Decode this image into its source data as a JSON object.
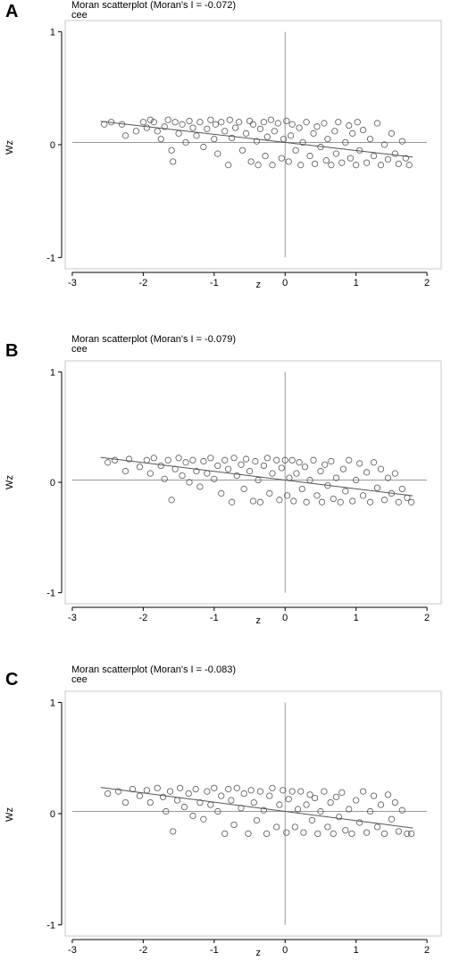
{
  "figure": {
    "panels": [
      {
        "letter": "A",
        "title": "Moran scatterplot (Moran's I = -0.072)",
        "subtitle": "cee"
      },
      {
        "letter": "B",
        "title": "Moran scatterplot (Moran's I = -0.079)",
        "subtitle": "cee"
      },
      {
        "letter": "C",
        "title": "Moran scatterplot (Moran's I = -0.083)",
        "subtitle": "cee"
      }
    ]
  },
  "chart_data": [
    {
      "type": "scatter",
      "title": "Moran scatterplot (Moran's I = -0.072)",
      "subtitle": "cee",
      "xlabel": "z",
      "ylabel": "Wz",
      "xlim": [
        -3.1,
        2.2
      ],
      "ylim": [
        -1.1,
        1.1
      ],
      "xticks": [
        -3,
        -2,
        -1,
        0,
        1,
        2
      ],
      "yticks": [
        -1,
        0,
        1
      ],
      "reference_lines": {
        "x": 0,
        "y": 0.02
      },
      "fit_line": {
        "intercept": 0.02,
        "slope": -0.072
      },
      "marker": "hollow-circle",
      "points": [
        [
          -2.55,
          0.18
        ],
        [
          -2.45,
          0.2
        ],
        [
          -2.3,
          0.18
        ],
        [
          -2.25,
          0.08
        ],
        [
          -2.1,
          0.12
        ],
        [
          -2.0,
          0.2
        ],
        [
          -1.95,
          0.15
        ],
        [
          -1.9,
          0.22
        ],
        [
          -1.85,
          0.2
        ],
        [
          -1.8,
          0.12
        ],
        [
          -1.75,
          0.05
        ],
        [
          -1.7,
          0.16
        ],
        [
          -1.65,
          0.22
        ],
        [
          -1.6,
          -0.05
        ],
        [
          -1.58,
          -0.15
        ],
        [
          -1.55,
          0.2
        ],
        [
          -1.5,
          0.1
        ],
        [
          -1.45,
          0.18
        ],
        [
          -1.4,
          0.02
        ],
        [
          -1.35,
          0.21
        ],
        [
          -1.3,
          0.15
        ],
        [
          -1.25,
          0.08
        ],
        [
          -1.2,
          0.2
        ],
        [
          -1.15,
          -0.02
        ],
        [
          -1.1,
          0.14
        ],
        [
          -1.05,
          0.22
        ],
        [
          -1.0,
          0.05
        ],
        [
          -0.98,
          0.18
        ],
        [
          -0.95,
          -0.08
        ],
        [
          -0.9,
          0.2
        ],
        [
          -0.85,
          0.12
        ],
        [
          -0.8,
          -0.18
        ],
        [
          -0.78,
          0.22
        ],
        [
          -0.75,
          0.06
        ],
        [
          -0.7,
          0.15
        ],
        [
          -0.65,
          0.2
        ],
        [
          -0.6,
          -0.05
        ],
        [
          -0.55,
          0.1
        ],
        [
          -0.5,
          0.21
        ],
        [
          -0.48,
          -0.15
        ],
        [
          -0.45,
          0.18
        ],
        [
          -0.4,
          0.03
        ],
        [
          -0.38,
          -0.18
        ],
        [
          -0.35,
          0.14
        ],
        [
          -0.3,
          0.2
        ],
        [
          -0.28,
          -0.1
        ],
        [
          -0.25,
          0.07
        ],
        [
          -0.2,
          0.22
        ],
        [
          -0.18,
          -0.18
        ],
        [
          -0.15,
          0.12
        ],
        [
          -0.1,
          0.19
        ],
        [
          -0.05,
          -0.12
        ],
        [
          -0.02,
          0.05
        ],
        [
          0.02,
          0.21
        ],
        [
          0.05,
          -0.15
        ],
        [
          0.08,
          0.08
        ],
        [
          0.1,
          0.18
        ],
        [
          0.15,
          -0.05
        ],
        [
          0.2,
          0.15
        ],
        [
          0.22,
          -0.18
        ],
        [
          0.25,
          0.02
        ],
        [
          0.3,
          0.2
        ],
        [
          0.35,
          -0.1
        ],
        [
          0.4,
          0.1
        ],
        [
          0.42,
          -0.17
        ],
        [
          0.45,
          0.16
        ],
        [
          0.5,
          -0.02
        ],
        [
          0.55,
          0.19
        ],
        [
          0.58,
          -0.14
        ],
        [
          0.6,
          0.05
        ],
        [
          0.65,
          -0.18
        ],
        [
          0.7,
          0.12
        ],
        [
          0.72,
          -0.08
        ],
        [
          0.75,
          0.2
        ],
        [
          0.8,
          -0.16
        ],
        [
          0.85,
          0.02
        ],
        [
          0.9,
          0.17
        ],
        [
          0.92,
          -0.12
        ],
        [
          0.95,
          0.1
        ],
        [
          1.0,
          -0.18
        ],
        [
          1.02,
          0.2
        ],
        [
          1.05,
          -0.05
        ],
        [
          1.1,
          0.13
        ],
        [
          1.15,
          -0.16
        ],
        [
          1.2,
          0.05
        ],
        [
          1.25,
          -0.1
        ],
        [
          1.3,
          0.19
        ],
        [
          1.35,
          -0.18
        ],
        [
          1.4,
          0.0
        ],
        [
          1.45,
          -0.13
        ],
        [
          1.5,
          0.1
        ],
        [
          1.55,
          -0.08
        ],
        [
          1.6,
          -0.17
        ],
        [
          1.65,
          0.03
        ],
        [
          1.7,
          -0.12
        ],
        [
          1.75,
          -0.18
        ]
      ]
    },
    {
      "type": "scatter",
      "title": "Moran scatterplot (Moran's I = -0.079)",
      "subtitle": "cee",
      "xlabel": "z",
      "ylabel": "Wz",
      "xlim": [
        -3.1,
        2.2
      ],
      "ylim": [
        -1.1,
        1.1
      ],
      "xticks": [
        -3,
        -2,
        -1,
        0,
        1,
        2
      ],
      "yticks": [
        -1,
        0,
        1
      ],
      "reference_lines": {
        "x": 0,
        "y": 0.02
      },
      "fit_line": {
        "intercept": 0.02,
        "slope": -0.079
      },
      "marker": "hollow-circle",
      "points": [
        [
          -2.5,
          0.18
        ],
        [
          -2.4,
          0.2
        ],
        [
          -2.25,
          0.1
        ],
        [
          -2.2,
          0.21
        ],
        [
          -2.05,
          0.14
        ],
        [
          -1.95,
          0.2
        ],
        [
          -1.9,
          0.08
        ],
        [
          -1.85,
          0.22
        ],
        [
          -1.75,
          0.15
        ],
        [
          -1.7,
          0.03
        ],
        [
          -1.65,
          0.2
        ],
        [
          -1.6,
          -0.16
        ],
        [
          -1.55,
          0.12
        ],
        [
          -1.5,
          0.22
        ],
        [
          -1.45,
          0.06
        ],
        [
          -1.4,
          0.18
        ],
        [
          -1.35,
          0.0
        ],
        [
          -1.3,
          0.2
        ],
        [
          -1.25,
          0.1
        ],
        [
          -1.2,
          -0.04
        ],
        [
          -1.15,
          0.19
        ],
        [
          -1.1,
          0.08
        ],
        [
          -1.05,
          0.22
        ],
        [
          -1.0,
          0.03
        ],
        [
          -0.95,
          0.15
        ],
        [
          -0.9,
          -0.1
        ],
        [
          -0.85,
          0.2
        ],
        [
          -0.8,
          0.12
        ],
        [
          -0.75,
          -0.18
        ],
        [
          -0.72,
          0.22
        ],
        [
          -0.68,
          0.06
        ],
        [
          -0.62,
          0.16
        ],
        [
          -0.58,
          -0.06
        ],
        [
          -0.55,
          0.21
        ],
        [
          -0.5,
          0.1
        ],
        [
          -0.45,
          -0.17
        ],
        [
          -0.42,
          0.19
        ],
        [
          -0.38,
          0.02
        ],
        [
          -0.35,
          -0.18
        ],
        [
          -0.3,
          0.15
        ],
        [
          -0.25,
          0.22
        ],
        [
          -0.22,
          -0.1
        ],
        [
          -0.18,
          0.08
        ],
        [
          -0.12,
          0.2
        ],
        [
          -0.08,
          -0.16
        ],
        [
          -0.05,
          0.13
        ],
        [
          0.0,
          0.2
        ],
        [
          0.03,
          -0.12
        ],
        [
          0.06,
          0.04
        ],
        [
          0.1,
          0.2
        ],
        [
          0.12,
          -0.17
        ],
        [
          0.16,
          0.08
        ],
        [
          0.2,
          0.18
        ],
        [
          0.24,
          -0.06
        ],
        [
          0.28,
          0.14
        ],
        [
          0.3,
          -0.18
        ],
        [
          0.35,
          0.02
        ],
        [
          0.4,
          0.2
        ],
        [
          0.45,
          -0.12
        ],
        [
          0.5,
          0.1
        ],
        [
          0.52,
          -0.18
        ],
        [
          0.56,
          0.16
        ],
        [
          0.6,
          -0.03
        ],
        [
          0.65,
          0.19
        ],
        [
          0.68,
          -0.15
        ],
        [
          0.72,
          0.04
        ],
        [
          0.78,
          -0.18
        ],
        [
          0.82,
          0.12
        ],
        [
          0.85,
          -0.08
        ],
        [
          0.9,
          0.2
        ],
        [
          0.95,
          -0.17
        ],
        [
          1.0,
          0.02
        ],
        [
          1.05,
          0.17
        ],
        [
          1.1,
          -0.12
        ],
        [
          1.15,
          0.09
        ],
        [
          1.2,
          -0.18
        ],
        [
          1.25,
          0.18
        ],
        [
          1.3,
          -0.05
        ],
        [
          1.35,
          0.12
        ],
        [
          1.4,
          -0.16
        ],
        [
          1.45,
          0.04
        ],
        [
          1.5,
          -0.1
        ],
        [
          1.55,
          0.08
        ],
        [
          1.6,
          -0.18
        ],
        [
          1.65,
          -0.06
        ],
        [
          1.72,
          -0.14
        ],
        [
          1.78,
          -0.18
        ]
      ]
    },
    {
      "type": "scatter",
      "title": "Moran scatterplot (Moran's I = -0.083)",
      "subtitle": "cee",
      "xlabel": "z",
      "ylabel": "Wz",
      "xlim": [
        -3.1,
        2.2
      ],
      "ylim": [
        -1.1,
        1.1
      ],
      "xticks": [
        -3,
        -2,
        -1,
        0,
        1,
        2
      ],
      "yticks": [
        -1,
        0,
        1
      ],
      "reference_lines": {
        "x": 0,
        "y": 0.02
      },
      "fit_line": {
        "intercept": 0.02,
        "slope": -0.083
      },
      "marker": "hollow-circle",
      "points": [
        [
          -2.5,
          0.18
        ],
        [
          -2.35,
          0.2
        ],
        [
          -2.25,
          0.1
        ],
        [
          -2.15,
          0.22
        ],
        [
          -2.05,
          0.16
        ],
        [
          -1.95,
          0.21
        ],
        [
          -1.9,
          0.1
        ],
        [
          -1.8,
          0.23
        ],
        [
          -1.72,
          0.15
        ],
        [
          -1.68,
          0.02
        ],
        [
          -1.62,
          0.2
        ],
        [
          -1.58,
          -0.16
        ],
        [
          -1.52,
          0.12
        ],
        [
          -1.48,
          0.23
        ],
        [
          -1.42,
          0.06
        ],
        [
          -1.36,
          0.18
        ],
        [
          -1.3,
          -0.02
        ],
        [
          -1.26,
          0.22
        ],
        [
          -1.2,
          0.1
        ],
        [
          -1.15,
          -0.05
        ],
        [
          -1.1,
          0.2
        ],
        [
          -1.05,
          0.08
        ],
        [
          -1.0,
          0.23
        ],
        [
          -0.95,
          0.02
        ],
        [
          -0.9,
          0.16
        ],
        [
          -0.85,
          -0.18
        ],
        [
          -0.8,
          0.22
        ],
        [
          -0.76,
          0.12
        ],
        [
          -0.72,
          -0.1
        ],
        [
          -0.68,
          0.23
        ],
        [
          -0.62,
          0.05
        ],
        [
          -0.58,
          0.18
        ],
        [
          -0.52,
          -0.18
        ],
        [
          -0.48,
          0.21
        ],
        [
          -0.44,
          0.1
        ],
        [
          -0.4,
          -0.06
        ],
        [
          -0.35,
          0.2
        ],
        [
          -0.3,
          0.03
        ],
        [
          -0.26,
          -0.18
        ],
        [
          -0.22,
          0.16
        ],
        [
          -0.18,
          0.23
        ],
        [
          -0.12,
          -0.12
        ],
        [
          -0.08,
          0.08
        ],
        [
          -0.03,
          0.21
        ],
        [
          0.02,
          -0.17
        ],
        [
          0.05,
          0.13
        ],
        [
          0.1,
          0.2
        ],
        [
          0.14,
          -0.12
        ],
        [
          0.18,
          0.04
        ],
        [
          0.22,
          0.2
        ],
        [
          0.26,
          -0.17
        ],
        [
          0.3,
          0.08
        ],
        [
          0.35,
          0.17
        ],
        [
          0.38,
          -0.06
        ],
        [
          0.42,
          0.14
        ],
        [
          0.46,
          -0.18
        ],
        [
          0.5,
          0.02
        ],
        [
          0.55,
          0.2
        ],
        [
          0.6,
          -0.12
        ],
        [
          0.64,
          0.1
        ],
        [
          0.68,
          -0.18
        ],
        [
          0.72,
          0.15
        ],
        [
          0.76,
          -0.03
        ],
        [
          0.8,
          0.19
        ],
        [
          0.85,
          -0.15
        ],
        [
          0.9,
          0.04
        ],
        [
          0.94,
          -0.18
        ],
        [
          1.0,
          0.12
        ],
        [
          1.05,
          -0.08
        ],
        [
          1.1,
          0.2
        ],
        [
          1.15,
          -0.17
        ],
        [
          1.2,
          0.02
        ],
        [
          1.25,
          0.16
        ],
        [
          1.3,
          -0.12
        ],
        [
          1.35,
          0.08
        ],
        [
          1.4,
          -0.18
        ],
        [
          1.45,
          0.17
        ],
        [
          1.5,
          -0.05
        ],
        [
          1.55,
          0.1
        ],
        [
          1.6,
          -0.16
        ],
        [
          1.65,
          0.03
        ],
        [
          1.72,
          -0.18
        ],
        [
          1.78,
          -0.18
        ]
      ]
    }
  ]
}
